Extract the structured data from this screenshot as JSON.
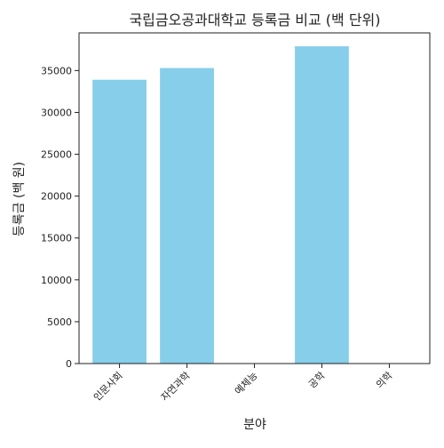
{
  "chart_data": {
    "type": "bar",
    "title": "국립금오공과대학교 등록금 비교 (백 단위)",
    "xlabel": "분야",
    "ylabel": "등록금 (백 원)",
    "categories": [
      "인문사회",
      "자연과학",
      "예체능",
      "공학",
      "의학"
    ],
    "values": [
      33900,
      35300,
      0,
      37900,
      0
    ],
    "ylim": [
      0,
      39500
    ],
    "yticks": [
      0,
      5000,
      10000,
      15000,
      20000,
      25000,
      30000,
      35000
    ],
    "yticklabels": [
      "0",
      "5000",
      "10000",
      "15000",
      "20000",
      "25000",
      "30000",
      "35000"
    ],
    "bar_color": "#87CEEB",
    "grid": false,
    "legend": null
  }
}
